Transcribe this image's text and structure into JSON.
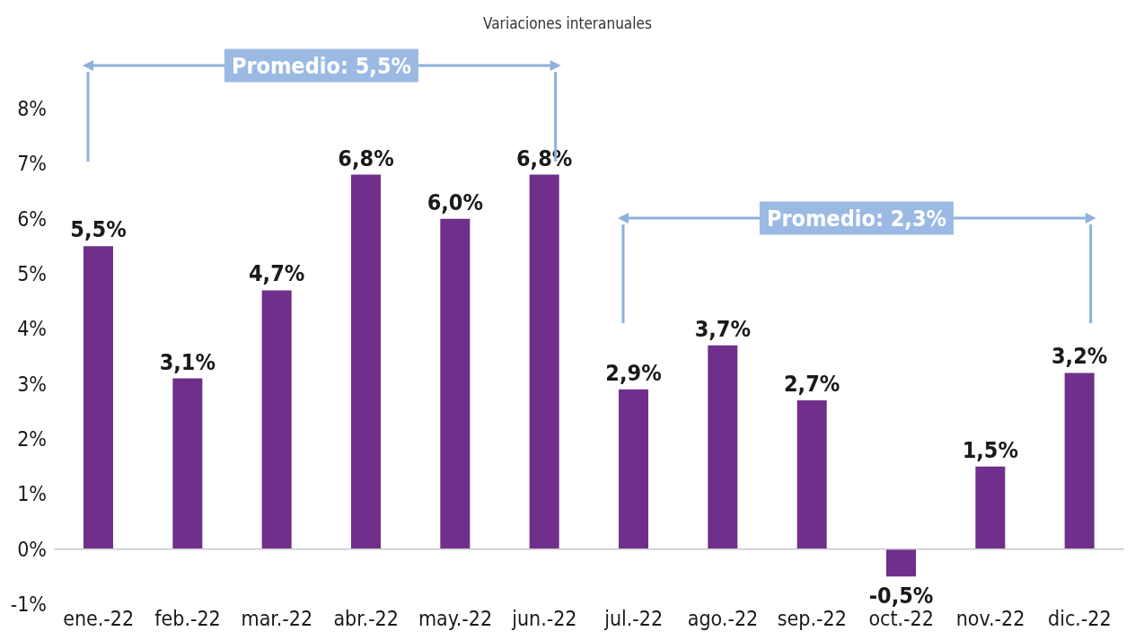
{
  "chart_data": {
    "type": "bar",
    "subtitle": "Variaciones interanuales",
    "categories": [
      "ene.-22",
      "feb.-22",
      "mar.-22",
      "abr.-22",
      "may.-22",
      "jun.-22",
      "jul.-22",
      "ago.-22",
      "sep.-22",
      "oct.-22",
      "nov.-22",
      "dic.-22"
    ],
    "values": [
      5.5,
      3.1,
      4.7,
      6.8,
      6.0,
      6.8,
      2.9,
      3.7,
      2.7,
      -0.5,
      1.5,
      3.2
    ],
    "value_labels": [
      "5,5%",
      "3,1%",
      "4,7%",
      "6,8%",
      "6,0%",
      "6,8%",
      "2,9%",
      "3,7%",
      "2,7%",
      "-0,5%",
      "1,5%",
      "3,2%"
    ],
    "color": "#702f8a",
    "ylim": [
      -1,
      8
    ],
    "yticks": [
      {
        "value": -1,
        "label": "-1%"
      },
      {
        "value": 0,
        "label": "0%"
      },
      {
        "value": 1,
        "label": "1%"
      },
      {
        "value": 2,
        "label": "2%"
      },
      {
        "value": 3,
        "label": "3%"
      },
      {
        "value": 4,
        "label": "4%"
      },
      {
        "value": 5,
        "label": "5%"
      },
      {
        "value": 6,
        "label": "6%"
      },
      {
        "value": 7,
        "label": "7%"
      },
      {
        "value": 8,
        "label": "8%"
      }
    ],
    "legend": false,
    "annotations": [
      "Promedio: 5,5%",
      "Promedio: 2,3%"
    ]
  }
}
